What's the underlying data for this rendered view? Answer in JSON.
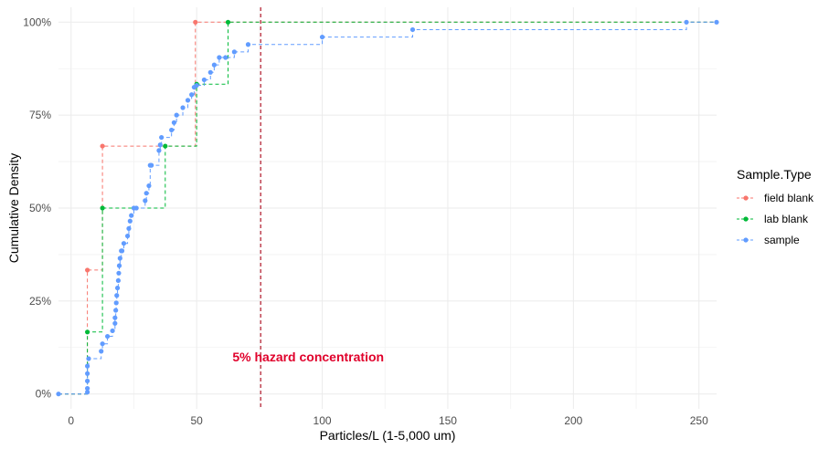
{
  "chart_data": {
    "type": "step",
    "xlabel": "Particles/L (1-5,000 um)",
    "ylabel": "Cumulative Density",
    "xlim": [
      -5,
      257
    ],
    "ylim": [
      -0.04,
      1.04
    ],
    "x_ticks": [
      0,
      50,
      100,
      150,
      200,
      250
    ],
    "x_tick_labels": [
      "0",
      "50",
      "100",
      "150",
      "200",
      "250"
    ],
    "y_ticks": [
      0,
      0.25,
      0.5,
      0.75,
      1.0
    ],
    "y_tick_labels": [
      "0%",
      "25%",
      "50%",
      "75%",
      "100%"
    ],
    "grid": true,
    "legend_title": "Sample.Type",
    "legend_position": "right",
    "series": [
      {
        "name": "field blank",
        "color": "#F8766D",
        "x": [
          6.5,
          12.5,
          49.5
        ],
        "y": [
          0.3333,
          0.6667,
          1.0
        ]
      },
      {
        "name": "lab blank",
        "color": "#00BA38",
        "x": [
          6.5,
          12.5,
          37.5,
          50.0,
          62.5
        ],
        "y": [
          0.1667,
          0.5,
          0.6667,
          0.8333,
          1.0
        ]
      },
      {
        "name": "sample",
        "color": "#619CFF",
        "x": [
          -5,
          6.5,
          6.5,
          6.5,
          6.5,
          6.5,
          7.0,
          12.0,
          12.5,
          14.5,
          16.5,
          17.5,
          17.5,
          17.8,
          18.0,
          18.2,
          18.5,
          18.8,
          19.0,
          19.2,
          19.5,
          20.0,
          20.3,
          21.0,
          22.5,
          23.0,
          23.5,
          24.0,
          25.0,
          26.0,
          29.5,
          30.0,
          31.0,
          31.5,
          32.0,
          35.0,
          35.5,
          36.0,
          40.0,
          41.0,
          42.0,
          44.5,
          46.5,
          48.0,
          49.0,
          50.0,
          53.0,
          55.5,
          57.0,
          59.0,
          61.5,
          65.0,
          70.5,
          100.0,
          136.0,
          245.0,
          257.0
        ],
        "y": [
          0.0,
          0.005,
          0.015,
          0.035,
          0.055,
          0.075,
          0.095,
          0.115,
          0.135,
          0.155,
          0.17,
          0.19,
          0.205,
          0.225,
          0.245,
          0.265,
          0.285,
          0.305,
          0.325,
          0.345,
          0.365,
          0.385,
          0.385,
          0.405,
          0.425,
          0.445,
          0.465,
          0.48,
          0.5,
          0.5,
          0.52,
          0.54,
          0.56,
          0.615,
          0.615,
          0.655,
          0.67,
          0.69,
          0.71,
          0.73,
          0.75,
          0.77,
          0.79,
          0.805,
          0.825,
          0.83,
          0.845,
          0.865,
          0.885,
          0.905,
          0.905,
          0.92,
          0.94,
          0.96,
          0.98,
          1.0,
          1.0
        ]
      }
    ],
    "vline": {
      "x": 75.5,
      "color": "#B2182B"
    },
    "annotation": {
      "text": "5% hazard concentration",
      "x": 75.5,
      "y": 0.095,
      "color": "#e0002b"
    }
  }
}
